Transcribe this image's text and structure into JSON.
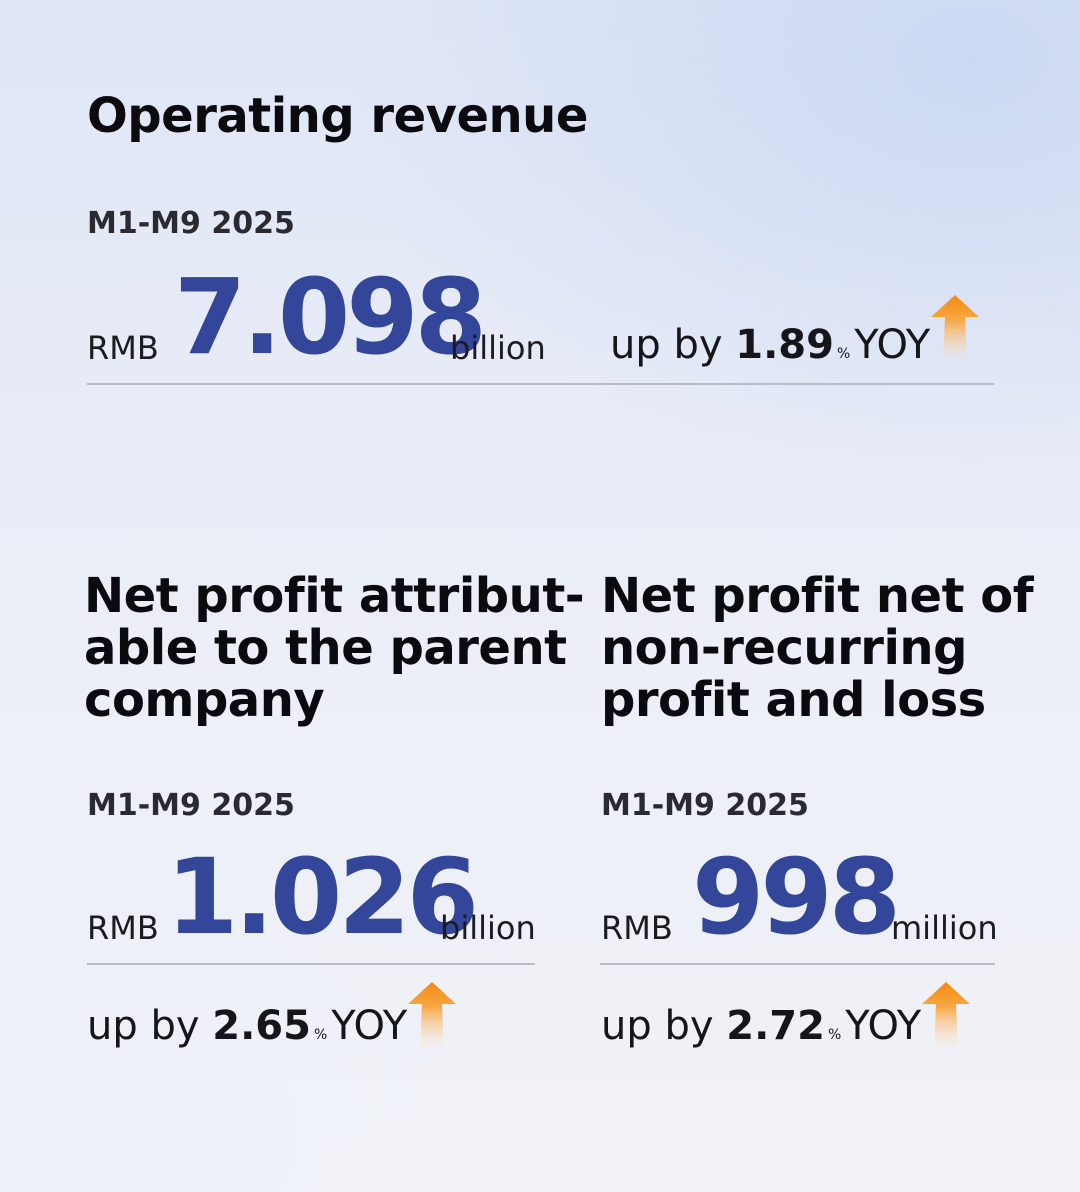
{
  "operating": {
    "title": "Operating revenue",
    "period": "M1-M9 2025",
    "currency": "RMB",
    "value": "7.098",
    "unit": "billion",
    "yoy_prefix": "up by",
    "yoy_value": "1.89",
    "yoy_pct": "%",
    "yoy_suffix": "YOY"
  },
  "net_profit": {
    "title_lines": [
      "Net profit attribut-",
      "able to the parent",
      "company"
    ],
    "period": "M1-M9 2025",
    "currency": "RMB",
    "value": "1.026",
    "unit": "billion",
    "yoy_prefix": "up by",
    "yoy_value": "2.65",
    "yoy_pct": "%",
    "yoy_suffix": "YOY"
  },
  "net_profit_nonrec": {
    "title_lines": [
      "Net profit net of",
      "non-recurring",
      "profit and loss"
    ],
    "period": "M1-M9 2025",
    "currency": "RMB",
    "value": "998",
    "unit": "million",
    "yoy_prefix": "up by",
    "yoy_value": "2.72",
    "yoy_pct": "%",
    "yoy_suffix": "YOY"
  },
  "colors": {
    "value_blue": "#33469a",
    "arrow_orange": "#f59a1f"
  },
  "icons": {
    "trend": "up-arrow-icon"
  }
}
